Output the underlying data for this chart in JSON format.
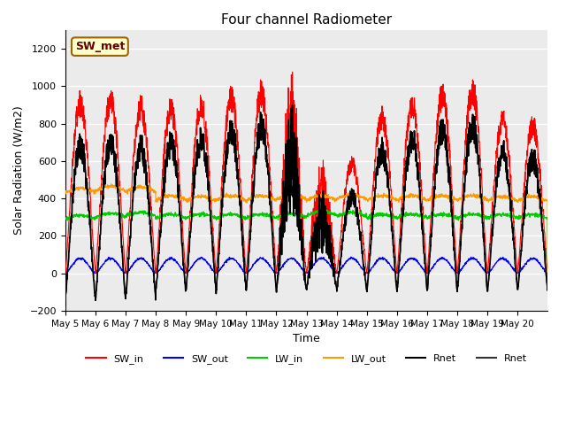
{
  "title": "Four channel Radiometer",
  "xlabel": "Time",
  "ylabel": "Solar Radiation (W/m2)",
  "ylim": [
    -200,
    1300
  ],
  "yticks": [
    -200,
    0,
    200,
    400,
    600,
    800,
    1000,
    1200
  ],
  "x_tick_pos": [
    0,
    1,
    2,
    3,
    4,
    5,
    6,
    7,
    8,
    9,
    10,
    11,
    12,
    13,
    14,
    15
  ],
  "x_labels": [
    "May 5",
    "May 6",
    "May 7",
    "May 8",
    "May 9",
    "May 10",
    "May 11",
    "May 12",
    "May 13",
    "May 14",
    "May 15",
    "May 16",
    "May 17",
    "May 18",
    "May 19",
    "May 20"
  ],
  "annotation": "SW_met",
  "annotation_bg": "#FFFFCC",
  "annotation_border": "#996600",
  "series_colors": {
    "SW_in": "#FF0000",
    "SW_out": "#0000FF",
    "LW_in": "#00CC00",
    "LW_out": "#FF9900",
    "Rnet1": "#000000",
    "Rnet2": "#333333"
  },
  "legend_labels": [
    "SW_in",
    "SW_out",
    "LW_in",
    "LW_out",
    "Rnet",
    "Rnet"
  ],
  "background_color": "#FFFFFF",
  "plot_bg": "#EBEBEB",
  "grid_color": "#FFFFFF",
  "n_days": 16,
  "pts_per_day": 144
}
